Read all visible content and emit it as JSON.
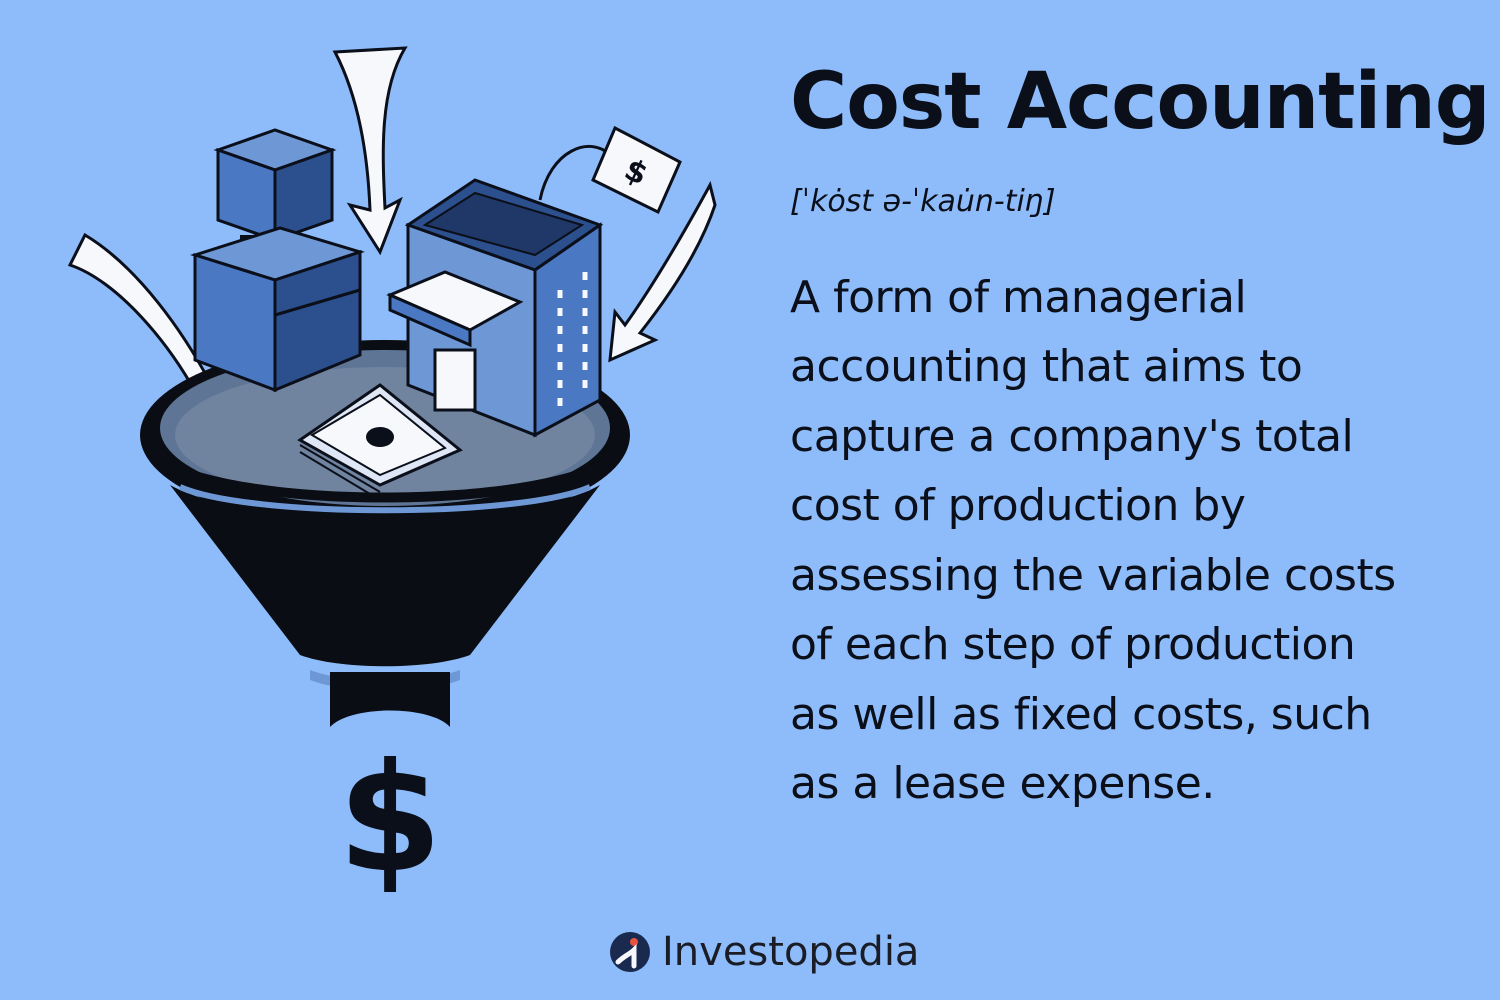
{
  "title": "Cost Accounting",
  "pronunciation": "[ˈkȯst ə-ˈkau̇n-tiŋ]",
  "definition_lines": [
    "A form of managerial",
    "accounting that aims to",
    "capture a company's total",
    "cost of production by",
    "assessing the variable costs",
    "of each step of production",
    "as well as fixed costs, such",
    "as a lease expense."
  ],
  "brand": {
    "name": "Investopedia",
    "icon": "investopedia-logo-icon"
  },
  "illustration": {
    "icons": [
      "funnel-icon",
      "box-icon",
      "store-building-icon",
      "price-tag-icon",
      "cash-stack-icon",
      "arrow-icon",
      "dollar-sign-icon"
    ],
    "tag_symbol": "$",
    "output_symbol": "$"
  },
  "colors": {
    "background": "#8ebcfb",
    "ink": "#0b0f1a",
    "box_blue": "#4a78c2",
    "box_dark": "#2c4f8e",
    "funnel": "#0a0d14",
    "arrow_fill": "#f7f8fc",
    "logo_blue": "#3c6bd8"
  }
}
